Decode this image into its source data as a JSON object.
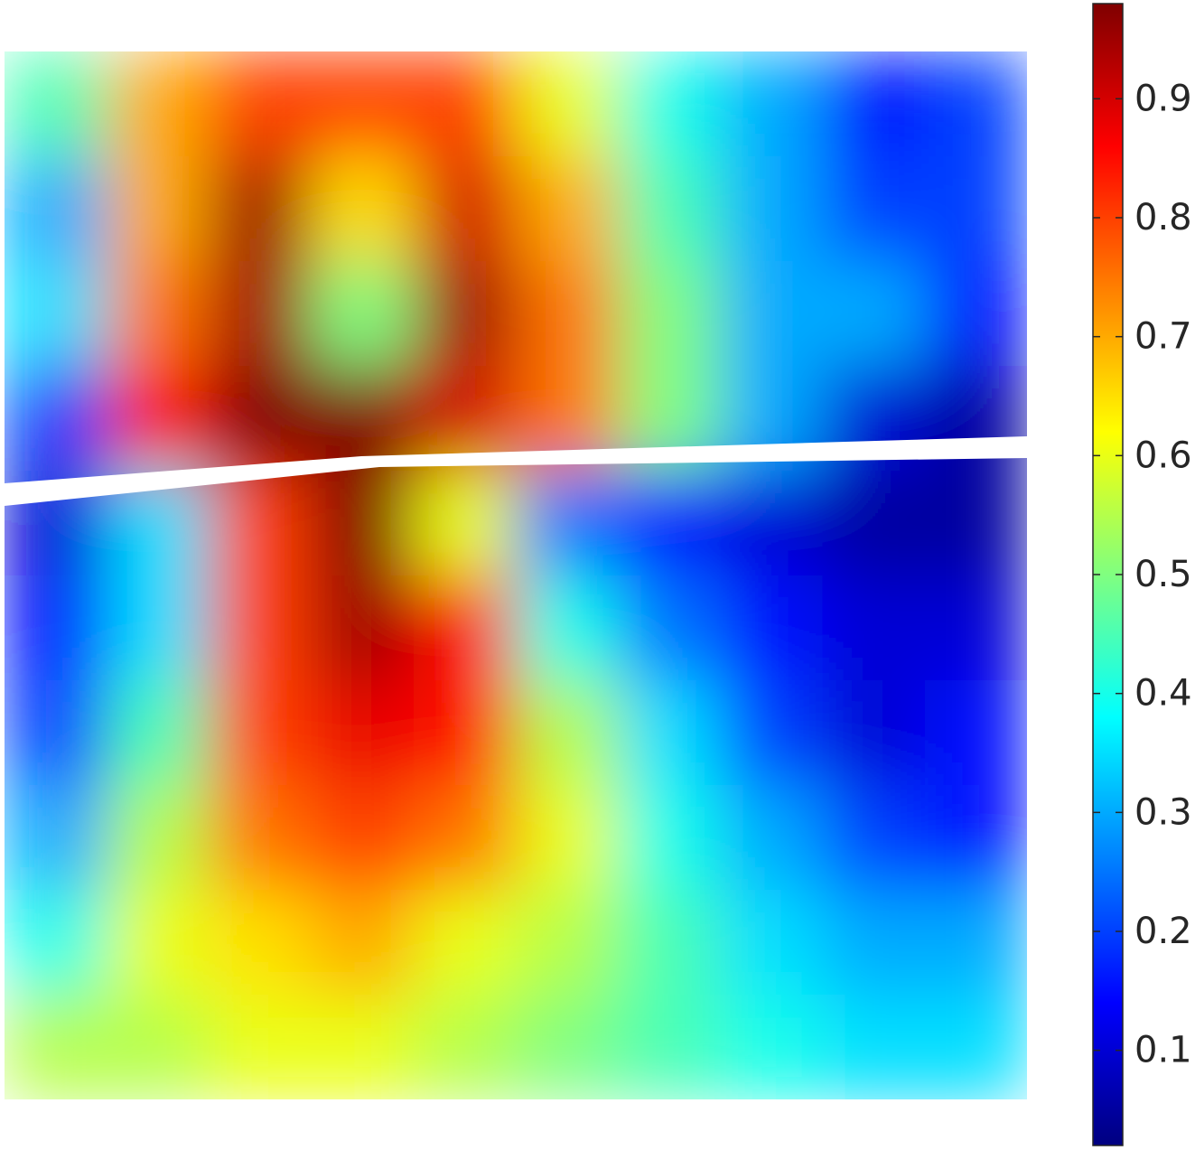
{
  "chart_data": {
    "type": "heatmap",
    "colormap": "jet",
    "clim": [
      0.02,
      0.98
    ],
    "cticks": [
      0.1,
      0.2,
      0.3,
      0.4,
      0.5,
      0.6,
      0.7,
      0.8,
      0.9
    ],
    "z": [
      [
        0.45,
        0.7,
        0.8,
        0.8,
        0.8,
        0.6,
        0.4,
        0.3,
        0.15,
        0.2
      ],
      [
        0.3,
        0.7,
        0.95,
        0.65,
        0.9,
        0.7,
        0.45,
        0.3,
        0.2,
        0.2
      ],
      [
        0.35,
        0.75,
        0.95,
        0.5,
        0.95,
        0.75,
        0.5,
        0.3,
        0.3,
        0.15
      ],
      [
        0.2,
        0.85,
        0.98,
        0.98,
        0.9,
        0.75,
        0.5,
        0.3,
        0.1,
        0.05
      ],
      [
        0.1,
        0.35,
        0.8,
        0.98,
        0.6,
        0.25,
        0.15,
        0.1,
        0.05,
        0.05
      ],
      [
        0.15,
        0.35,
        0.8,
        0.95,
        0.85,
        0.4,
        0.25,
        0.15,
        0.1,
        0.1
      ],
      [
        0.2,
        0.45,
        0.8,
        0.88,
        0.85,
        0.55,
        0.35,
        0.2,
        0.1,
        0.15
      ],
      [
        0.3,
        0.55,
        0.75,
        0.8,
        0.75,
        0.6,
        0.4,
        0.3,
        0.2,
        0.15
      ],
      [
        0.4,
        0.6,
        0.65,
        0.7,
        0.6,
        0.55,
        0.45,
        0.35,
        0.3,
        0.3
      ],
      [
        0.55,
        0.55,
        0.6,
        0.6,
        0.55,
        0.5,
        0.45,
        0.4,
        0.35,
        0.35
      ]
    ]
  }
}
